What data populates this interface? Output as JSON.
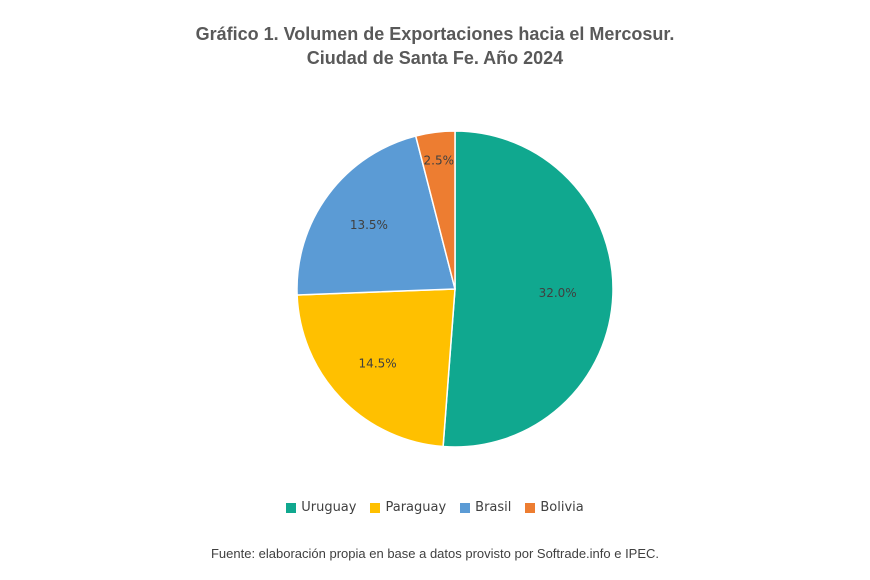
{
  "chart_data": {
    "type": "pie",
    "title": "Gráfico 1. Volumen de Exportaciones hacia el Mercosur.",
    "subtitle": "Ciudad de Santa Fe. Año 2024",
    "slices": [
      {
        "name": "Uruguay",
        "value": 32.0,
        "label": "32.0%",
        "color": "#10a88f"
      },
      {
        "name": "Paraguay",
        "value": 14.5,
        "label": "14.5%",
        "color": "#ffc000"
      },
      {
        "name": "Brasil",
        "value": 13.5,
        "label": "13.5%",
        "color": "#5b9bd5"
      },
      {
        "name": "Bolivia",
        "value": 2.5,
        "label": "2.5%",
        "color": "#ed7d31"
      }
    ],
    "legend": {
      "placement": "bottom",
      "entries": [
        "Uruguay",
        "Paraguay",
        "Brasil",
        "Bolivia"
      ]
    }
  },
  "source_note": "Fuente: elaboración propia en base a datos provisto por Softrade.info e IPEC."
}
